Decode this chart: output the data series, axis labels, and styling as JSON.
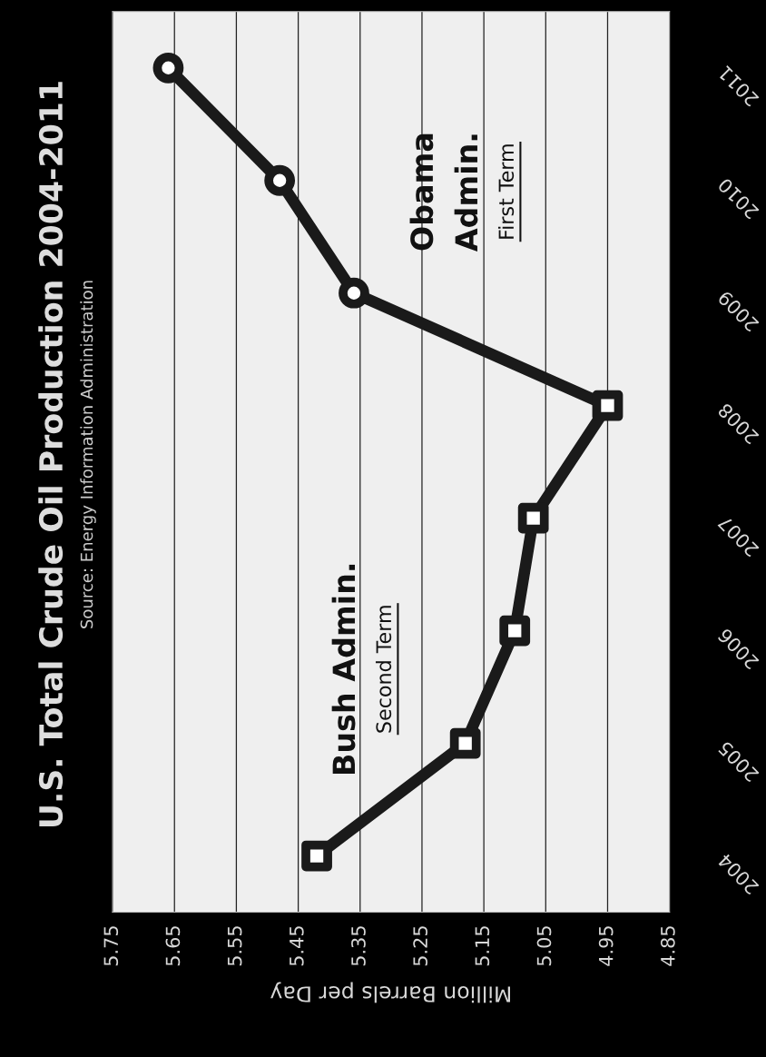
{
  "chart_data": {
    "type": "line",
    "orientation": "horizontal",
    "title": "U.S. Total Crude Oil Production 2004-2011",
    "subtitle": "Source: Energy Information Administration",
    "xlabel": "Million Barrels per Day",
    "categories": [
      "2011",
      "2010",
      "2009",
      "2008",
      "2007",
      "2006",
      "2005",
      "2004"
    ],
    "series": [
      {
        "color": "#1a1a1a",
        "marker": "none",
        "line_style": "solid",
        "values": [
          5.66,
          5.48,
          5.36,
          4.95,
          5.07,
          5.1,
          5.18,
          5.42
        ]
      },
      {
        "type": "scatter",
        "color": "#1a1a1a",
        "marker": "square",
        "values": [
          null,
          null,
          null,
          4.95,
          5.07,
          5.1,
          5.18,
          5.42
        ]
      },
      {
        "type": "scatter",
        "color": "#1a1a1a",
        "marker": "circle",
        "values": [
          5.66,
          5.48,
          5.36,
          null,
          null,
          null,
          null,
          null
        ]
      }
    ],
    "xlim": [
      5.75,
      4.85
    ],
    "xticks": [
      5.75,
      5.65,
      5.55,
      5.45,
      5.35,
      5.25,
      5.15,
      5.05,
      4.95,
      4.85
    ],
    "grid": "x",
    "annotations": [
      "Bush Admin.",
      "Second Term",
      "Obama",
      "Admin.",
      "First Term"
    ]
  }
}
